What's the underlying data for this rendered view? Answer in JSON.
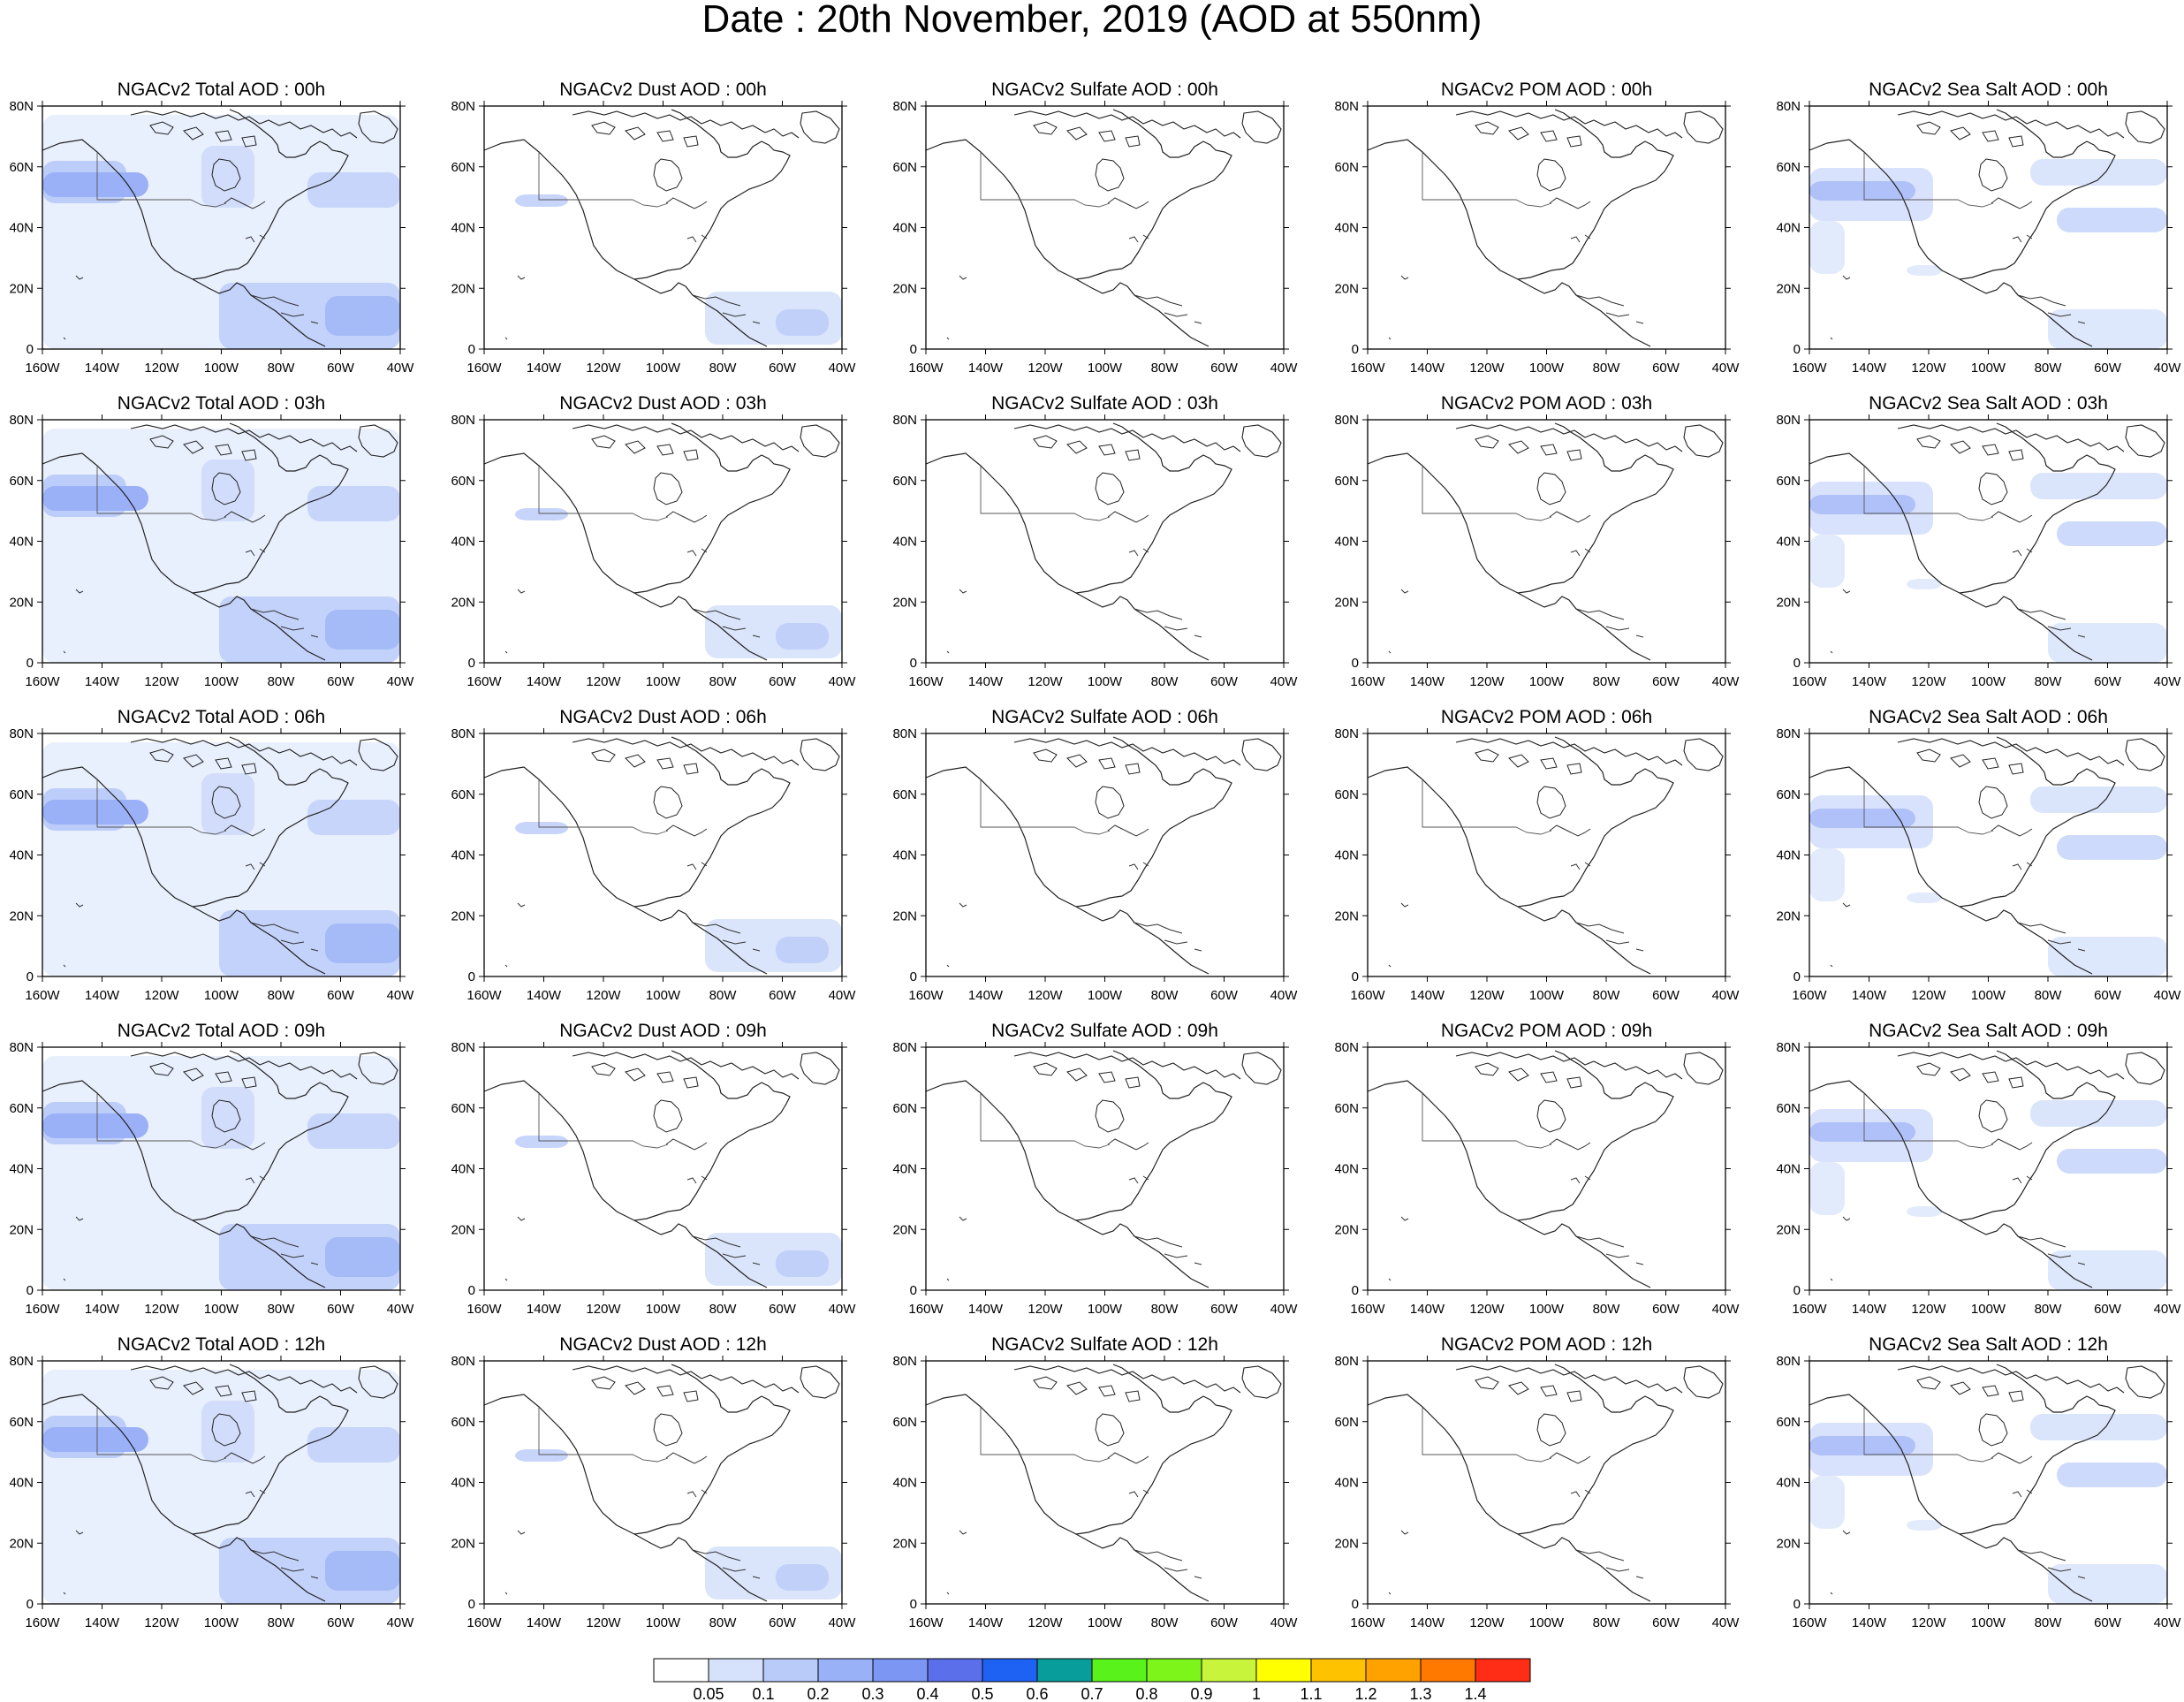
{
  "figure": {
    "title": "Date : 20th November, 2019 (AOD at 550nm)"
  },
  "axes": {
    "lon_ticks": [
      "160W",
      "140W",
      "120W",
      "100W",
      "80W",
      "60W",
      "40W"
    ],
    "lat_ticks": [
      "80N",
      "60N",
      "40N",
      "20N",
      "0"
    ],
    "lon_range": [
      -160,
      -40
    ],
    "lat_range": [
      0,
      80
    ]
  },
  "panels": [
    [
      {
        "title": "NGACv2 Total AOD : 00h",
        "species": "total"
      },
      {
        "title": "NGACv2 Dust AOD : 00h",
        "species": "dust"
      },
      {
        "title": "NGACv2 Sulfate AOD : 00h",
        "species": "sulfate"
      },
      {
        "title": "NGACv2 POM AOD : 00h",
        "species": "pom"
      },
      {
        "title": "NGACv2 Sea Salt AOD : 00h",
        "species": "seasalt"
      }
    ],
    [
      {
        "title": "NGACv2 Total AOD : 03h",
        "species": "total"
      },
      {
        "title": "NGACv2 Dust AOD : 03h",
        "species": "dust"
      },
      {
        "title": "NGACv2 Sulfate AOD : 03h",
        "species": "sulfate"
      },
      {
        "title": "NGACv2 POM AOD : 03h",
        "species": "pom"
      },
      {
        "title": "NGACv2 Sea Salt AOD : 03h",
        "species": "seasalt"
      }
    ],
    [
      {
        "title": "NGACv2 Total AOD : 06h",
        "species": "total"
      },
      {
        "title": "NGACv2 Dust AOD : 06h",
        "species": "dust"
      },
      {
        "title": "NGACv2 Sulfate AOD : 06h",
        "species": "sulfate"
      },
      {
        "title": "NGACv2 POM AOD : 06h",
        "species": "pom"
      },
      {
        "title": "NGACv2 Sea Salt AOD : 06h",
        "species": "seasalt"
      }
    ],
    [
      {
        "title": "NGACv2 Total AOD : 09h",
        "species": "total"
      },
      {
        "title": "NGACv2 Dust AOD : 09h",
        "species": "dust"
      },
      {
        "title": "NGACv2 Sulfate AOD : 09h",
        "species": "sulfate"
      },
      {
        "title": "NGACv2 POM AOD : 09h",
        "species": "pom"
      },
      {
        "title": "NGACv2 Sea Salt  AOD : 09h",
        "species": "seasalt"
      }
    ],
    [
      {
        "title": "NGACv2 Total AOD  : 12h",
        "species": "total"
      },
      {
        "title": "NGACv2 Dust AOD : 12h",
        "species": "dust"
      },
      {
        "title": "NGACv2 Sulfate AOD : 12h",
        "species": "sulfate"
      },
      {
        "title": "NGACv2 POM  AOD : 12h",
        "species": "pom"
      },
      {
        "title": "NGACv2 Sea Salt  AOD : 12h",
        "species": "seasalt"
      }
    ]
  ],
  "colorbar": {
    "labels": [
      "0.05",
      "0.1",
      "0.2",
      "0.3",
      "0.4",
      "0.5",
      "0.6",
      "0.7",
      "0.8",
      "0.9",
      "1",
      "1.1",
      "1.2",
      "1.3",
      "1.4"
    ],
    "colors": [
      "#ffffff",
      "#d6e2fb",
      "#b9cbf9",
      "#99b1f7",
      "#7b96f3",
      "#5c6fea",
      "#1e62f4",
      "#089c9a",
      "#59f21a",
      "#7df41a",
      "#c8f53c",
      "#ffff00",
      "#ffc200",
      "#ffa200",
      "#ff7800",
      "#ff2d16"
    ]
  }
}
